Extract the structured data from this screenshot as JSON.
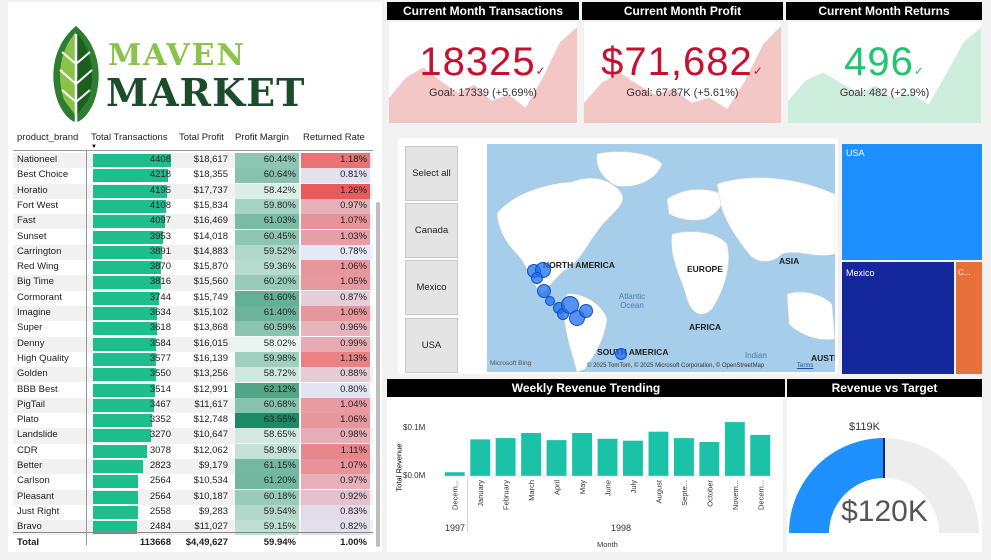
{
  "logo": {
    "line1": "MAVEN",
    "line2": "MARKET"
  },
  "kpis": [
    {
      "title": "Current Month Transactions",
      "value": "18325",
      "goal": "Goal: 17339 (+5.69%)",
      "color": "#c8102e",
      "fill": "#f4c7c7",
      "spark": [
        0.75,
        0.55,
        0.45,
        0.58,
        0.7,
        0.62,
        0.78,
        0.72,
        0.85,
        0.55,
        0.2,
        0.05
      ]
    },
    {
      "title": "Current Month Profit",
      "value": "$71,682",
      "goal": "Goal: 67.87K (+5.61%)",
      "color": "#c8102e",
      "fill": "#f4c7c7",
      "spark": [
        0.8,
        0.6,
        0.5,
        0.62,
        0.72,
        0.66,
        0.8,
        0.75,
        0.86,
        0.58,
        0.22,
        0.04
      ]
    },
    {
      "title": "Current Month Returns",
      "value": "496",
      "goal": "Goal: 482 (+2.9%)",
      "color": "#21c46f",
      "fill": "#cdeedd",
      "spark": [
        0.78,
        0.58,
        0.5,
        0.6,
        0.7,
        0.63,
        0.76,
        0.7,
        0.82,
        0.52,
        0.2,
        0.05
      ]
    }
  ],
  "check_icon": "✓",
  "table": {
    "headers": [
      "product_brand",
      "Total Transactions",
      "Total Profit",
      "Profit Margin",
      "Returned Rate"
    ],
    "rows": [
      [
        "Nationeel",
        "4408",
        "$18,617",
        "60.44%",
        "1.18%"
      ],
      [
        "Best Choice",
        "4218",
        "$18,355",
        "60.64%",
        "0.81%"
      ],
      [
        "Horatio",
        "4195",
        "$17,737",
        "58.42%",
        "1.26%"
      ],
      [
        "Fort West",
        "4108",
        "$15,834",
        "59.80%",
        "0.97%"
      ],
      [
        "Fast",
        "4097",
        "$16,469",
        "61.03%",
        "1.07%"
      ],
      [
        "Sunset",
        "3953",
        "$14,018",
        "60.45%",
        "1.03%"
      ],
      [
        "Carrington",
        "3891",
        "$14,883",
        "59.52%",
        "0.78%"
      ],
      [
        "Red Wing",
        "3870",
        "$15,870",
        "59.36%",
        "1.06%"
      ],
      [
        "Big Time",
        "3816",
        "$15,560",
        "60.20%",
        "1.05%"
      ],
      [
        "Cormorant",
        "3744",
        "$15,749",
        "61.60%",
        "0.87%"
      ],
      [
        "Imagine",
        "3634",
        "$15,102",
        "61.40%",
        "1.06%"
      ],
      [
        "Super",
        "3618",
        "$13,868",
        "60.59%",
        "0.96%"
      ],
      [
        "Denny",
        "3584",
        "$16,015",
        "58.02%",
        "0.99%"
      ],
      [
        "High Quality",
        "3577",
        "$16,139",
        "59.98%",
        "1.13%"
      ],
      [
        "Golden",
        "3550",
        "$13,256",
        "58.72%",
        "0.88%"
      ],
      [
        "BBB Best",
        "3514",
        "$12,991",
        "62.12%",
        "0.80%"
      ],
      [
        "PigTail",
        "3467",
        "$11,617",
        "60.68%",
        "1.04%"
      ],
      [
        "Plato",
        "3352",
        "$12,748",
        "63.55%",
        "1.06%"
      ],
      [
        "Landslide",
        "3270",
        "$10,647",
        "58.65%",
        "0.98%"
      ],
      [
        "CDR",
        "3078",
        "$12,062",
        "58.98%",
        "1.11%"
      ],
      [
        "Better",
        "2823",
        "$9,179",
        "61.15%",
        "1.07%"
      ],
      [
        "Carlson",
        "2564",
        "$10,534",
        "61.20%",
        "0.97%"
      ],
      [
        "Pleasant",
        "2564",
        "$10,187",
        "60.18%",
        "0.92%"
      ],
      [
        "Just Right",
        "2558",
        "$9,283",
        "59.54%",
        "0.83%"
      ],
      [
        "Bravo",
        "2484",
        "$11,027",
        "59.15%",
        "0.82%"
      ]
    ],
    "total": [
      "Total",
      "113668",
      "$4,49,627",
      "59.94%",
      "1.00%"
    ]
  },
  "slicers": [
    "Select all",
    "Canada",
    "Mexico",
    "USA"
  ],
  "map": {
    "labels": [
      "NORTH AMERICA",
      "EUROPE",
      "ASIA",
      "AFRICA",
      "SOUTH AMERICA",
      "AUSTI"
    ],
    "oceans": [
      "Atlantic Ocean",
      "Indian"
    ],
    "attribution": "© 2025 TomTom, © 2025 Microsoft Corporation, © OpenStreetMap",
    "terms": "Terms",
    "bing": "Microsoft Bing"
  },
  "treemap": {
    "usa": "USA",
    "mexico": "Mexico",
    "canada": "C..."
  },
  "weekly": {
    "title": "Weekly Revenue Trending",
    "ylabel": "Total Revenue",
    "xlabel": "Month",
    "yticks": [
      "$0.1M",
      "$0.0M"
    ],
    "year1997": "1997",
    "year1998": "1998"
  },
  "gauge": {
    "title": "Revenue vs Target",
    "target_label": "$119K",
    "value_label": "$120K",
    "fill_fraction": 0.5,
    "color": "#1e90ff"
  },
  "chart_data": {
    "type": "bar",
    "title": "Weekly Revenue Trending",
    "xlabel": "Month",
    "ylabel": "Total Revenue",
    "categories": [
      "December",
      "January",
      "February",
      "March",
      "April",
      "May",
      "June",
      "July",
      "August",
      "September",
      "October",
      "November",
      "December"
    ],
    "values": [
      0.006,
      0.057,
      0.059,
      0.067,
      0.056,
      0.067,
      0.058,
      0.055,
      0.069,
      0.059,
      0.053,
      0.084,
      0.064
    ],
    "ylim": [
      0,
      0.12
    ],
    "color": "#1cc2a8"
  }
}
